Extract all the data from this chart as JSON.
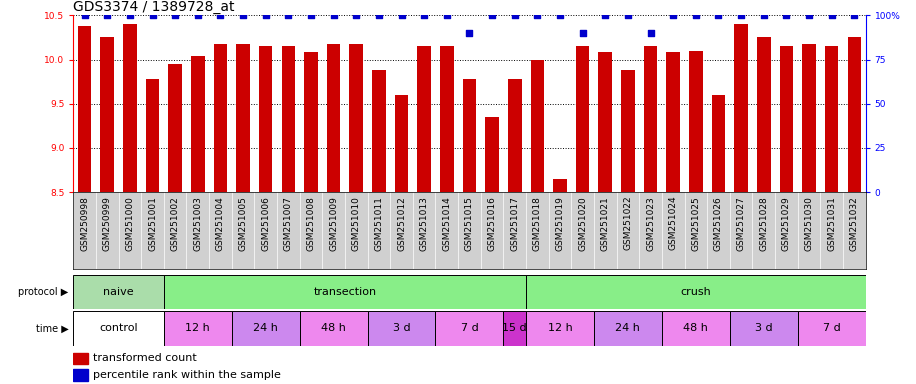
{
  "title": "GDS3374 / 1389728_at",
  "samples": [
    "GSM250998",
    "GSM250999",
    "GSM251000",
    "GSM251001",
    "GSM251002",
    "GSM251003",
    "GSM251004",
    "GSM251005",
    "GSM251006",
    "GSM251007",
    "GSM251008",
    "GSM251009",
    "GSM251010",
    "GSM251011",
    "GSM251012",
    "GSM251013",
    "GSM251014",
    "GSM251015",
    "GSM251016",
    "GSM251017",
    "GSM251018",
    "GSM251019",
    "GSM251020",
    "GSM251021",
    "GSM251022",
    "GSM251023",
    "GSM251024",
    "GSM251025",
    "GSM251026",
    "GSM251027",
    "GSM251028",
    "GSM251029",
    "GSM251030",
    "GSM251031",
    "GSM251032"
  ],
  "bar_values": [
    10.38,
    10.25,
    10.4,
    9.78,
    9.95,
    10.04,
    10.18,
    10.18,
    10.15,
    10.15,
    10.08,
    10.18,
    10.18,
    9.88,
    9.6,
    10.15,
    10.15,
    9.78,
    9.35,
    9.78,
    10.0,
    8.65,
    10.15,
    10.08,
    9.88,
    10.15,
    10.08,
    10.1,
    9.6,
    10.4,
    10.25,
    10.15,
    10.18,
    10.15,
    10.25
  ],
  "percentile_values": [
    100,
    100,
    100,
    100,
    100,
    100,
    100,
    100,
    100,
    100,
    100,
    100,
    100,
    100,
    100,
    100,
    100,
    90,
    100,
    100,
    100,
    100,
    90,
    100,
    100,
    90,
    100,
    100,
    100,
    100,
    100,
    100,
    100,
    100,
    100
  ],
  "ymin": 8.5,
  "ymax": 10.5,
  "y2min": 0,
  "y2max": 100,
  "bar_color": "#cc0000",
  "dot_color": "#0000cc",
  "background_color": "#ffffff",
  "sample_bg_color": "#d0d0d0",
  "grid_color": "#000000",
  "protocol_groups": [
    {
      "label": "naive",
      "start": 0,
      "end": 4,
      "color": "#aaddaa"
    },
    {
      "label": "transection",
      "start": 4,
      "end": 20,
      "color": "#88ee88"
    },
    {
      "label": "crush",
      "start": 20,
      "end": 35,
      "color": "#88ee88"
    }
  ],
  "time_groups": [
    {
      "label": "control",
      "start": 0,
      "end": 4,
      "color": "#ffffff"
    },
    {
      "label": "12 h",
      "start": 4,
      "end": 7,
      "color": "#ee88ee"
    },
    {
      "label": "24 h",
      "start": 7,
      "end": 10,
      "color": "#cc88ee"
    },
    {
      "label": "48 h",
      "start": 10,
      "end": 13,
      "color": "#ee88ee"
    },
    {
      "label": "3 d",
      "start": 13,
      "end": 16,
      "color": "#cc88ee"
    },
    {
      "label": "7 d",
      "start": 16,
      "end": 19,
      "color": "#ee88ee"
    },
    {
      "label": "15 d",
      "start": 19,
      "end": 20,
      "color": "#cc33cc"
    },
    {
      "label": "12 h",
      "start": 20,
      "end": 23,
      "color": "#ee88ee"
    },
    {
      "label": "24 h",
      "start": 23,
      "end": 26,
      "color": "#cc88ee"
    },
    {
      "label": "48 h",
      "start": 26,
      "end": 29,
      "color": "#ee88ee"
    },
    {
      "label": "3 d",
      "start": 29,
      "end": 32,
      "color": "#cc88ee"
    },
    {
      "label": "7 d",
      "start": 32,
      "end": 35,
      "color": "#ee88ee"
    }
  ],
  "title_fontsize": 10,
  "tick_fontsize": 6.5,
  "sample_fontsize": 6.5,
  "label_fontsize": 8,
  "annot_fontsize": 8
}
